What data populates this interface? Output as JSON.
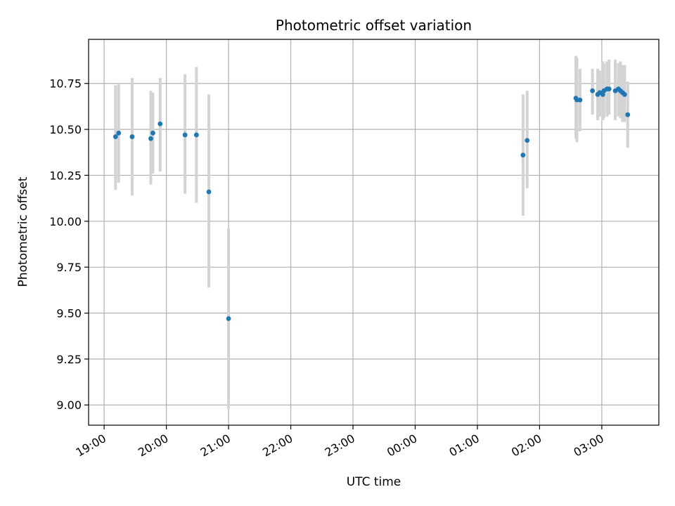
{
  "chart_data": {
    "type": "scatter",
    "title": "Photometric offset variation",
    "xlabel": "UTC time",
    "ylabel": "Photometric offset",
    "x_axis_type": "time",
    "xlim": [
      "18:45",
      "03:55"
    ],
    "ylim": [
      8.89,
      10.99
    ],
    "grid": true,
    "x_ticks": [
      "19:00",
      "20:00",
      "21:00",
      "22:00",
      "23:00",
      "00:00",
      "01:00",
      "02:00",
      "03:00"
    ],
    "y_ticks": [
      9.0,
      9.25,
      9.5,
      9.75,
      10.0,
      10.25,
      10.5,
      10.75
    ],
    "y_tick_labels": [
      "9.00",
      "9.25",
      "9.50",
      "9.75",
      "10.00",
      "10.25",
      "10.50",
      "10.75"
    ],
    "colors": {
      "marker": "#1f77b4",
      "errorbar": "#d3d3d3",
      "grid": "#b0b0b0"
    },
    "points": [
      {
        "x": "19:11",
        "y": 10.46,
        "ylo": 10.17,
        "yhi": 10.74
      },
      {
        "x": "19:14",
        "y": 10.48,
        "ylo": 10.21,
        "yhi": 10.75
      },
      {
        "x": "19:27",
        "y": 10.46,
        "ylo": 10.14,
        "yhi": 10.78
      },
      {
        "x": "19:45",
        "y": 10.45,
        "ylo": 10.2,
        "yhi": 10.71
      },
      {
        "x": "19:47",
        "y": 10.48,
        "ylo": 10.26,
        "yhi": 10.7
      },
      {
        "x": "19:54",
        "y": 10.53,
        "ylo": 10.27,
        "yhi": 10.78
      },
      {
        "x": "20:18",
        "y": 10.47,
        "ylo": 10.15,
        "yhi": 10.8
      },
      {
        "x": "20:29",
        "y": 10.47,
        "ylo": 10.1,
        "yhi": 10.84
      },
      {
        "x": "20:41",
        "y": 10.16,
        "ylo": 9.64,
        "yhi": 10.69
      },
      {
        "x": "21:00",
        "y": 9.47,
        "ylo": 8.98,
        "yhi": 9.96
      },
      {
        "x": "01:44",
        "y": 10.36,
        "ylo": 10.03,
        "yhi": 10.69
      },
      {
        "x": "01:48",
        "y": 10.44,
        "ylo": 10.18,
        "yhi": 10.71
      },
      {
        "x": "02:35",
        "y": 10.67,
        "ylo": 10.45,
        "yhi": 10.9
      },
      {
        "x": "02:36",
        "y": 10.66,
        "ylo": 10.43,
        "yhi": 10.89
      },
      {
        "x": "02:39",
        "y": 10.66,
        "ylo": 10.49,
        "yhi": 10.83
      },
      {
        "x": "02:51",
        "y": 10.71,
        "ylo": 10.58,
        "yhi": 10.83
      },
      {
        "x": "02:56",
        "y": 10.69,
        "ylo": 10.55,
        "yhi": 10.83
      },
      {
        "x": "02:58",
        "y": 10.7,
        "ylo": 10.57,
        "yhi": 10.82
      },
      {
        "x": "03:01",
        "y": 10.69,
        "ylo": 10.55,
        "yhi": 10.87
      },
      {
        "x": "03:02",
        "y": 10.71,
        "ylo": 10.56,
        "yhi": 10.86
      },
      {
        "x": "03:05",
        "y": 10.72,
        "ylo": 10.57,
        "yhi": 10.87
      },
      {
        "x": "03:07",
        "y": 10.72,
        "ylo": 10.58,
        "yhi": 10.88
      },
      {
        "x": "03:13",
        "y": 10.71,
        "ylo": 10.55,
        "yhi": 10.88
      },
      {
        "x": "03:16",
        "y": 10.72,
        "ylo": 10.57,
        "yhi": 10.86
      },
      {
        "x": "03:18",
        "y": 10.71,
        "ylo": 10.56,
        "yhi": 10.87
      },
      {
        "x": "03:20",
        "y": 10.7,
        "ylo": 10.54,
        "yhi": 10.85
      },
      {
        "x": "03:22",
        "y": 10.69,
        "ylo": 10.54,
        "yhi": 10.85
      },
      {
        "x": "03:25",
        "y": 10.58,
        "ylo": 10.4,
        "yhi": 10.76
      }
    ]
  }
}
